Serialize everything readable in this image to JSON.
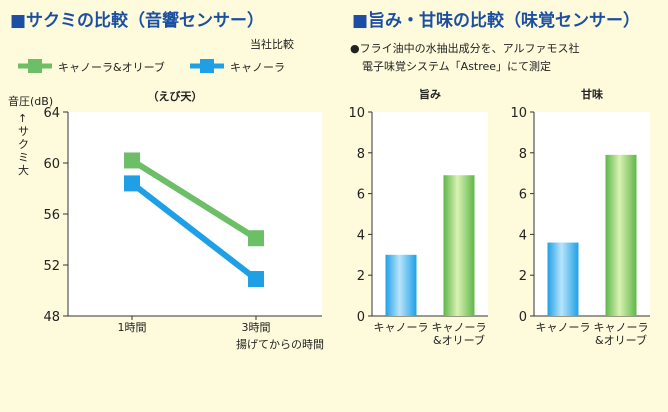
{
  "left_panel": {
    "title": "■サクミの比較（音響センサー）",
    "comparison_note": "当社比較",
    "legend": [
      {
        "label": "キャノーラ&オリーブ",
        "color": "#6dbf67"
      },
      {
        "label": "キャノーラ",
        "color": "#1fa0e6"
      }
    ],
    "y_axis_label": "音圧(dB)",
    "y_axis_note": "↑サクミ大",
    "x_axis_note": "揚げてからの時間"
  },
  "right_panel": {
    "title": "■旨み・甘味の比較（味覚センサー）",
    "note_line1": "●フライ油中の水抽出成分を、アルファモス社",
    "note_line2": "電子味覚システム「Astree」にて測定"
  },
  "chart_data": [
    {
      "type": "line",
      "title": "（えび天）",
      "x": [
        "1時間",
        "3時間"
      ],
      "series": [
        {
          "name": "キャノーラ&オリーブ",
          "values": [
            60.2,
            54.1
          ],
          "color": "#6dbf67"
        },
        {
          "name": "キャノーラ",
          "values": [
            58.4,
            50.9
          ],
          "color": "#1fa0e6"
        }
      ],
      "ylim": [
        48,
        64
      ],
      "yticks": [
        48,
        52,
        56,
        60,
        64
      ],
      "ylabel": "音圧(dB)",
      "xlabel": "揚げてからの時間",
      "grid": false
    },
    {
      "type": "bar",
      "title": "旨み",
      "categories": [
        "キャノーラ",
        "キャノーラ&オリーブ"
      ],
      "category_lines": [
        [
          "キャノーラ"
        ],
        [
          "キャノーラ",
          "&オリーブ"
        ]
      ],
      "values": [
        3.0,
        6.9
      ],
      "colors": [
        "#1fa0e6",
        "#6dbf67"
      ],
      "ylim": [
        0,
        10
      ],
      "yticks": [
        0,
        2,
        4,
        6,
        8,
        10
      ],
      "grid": false
    },
    {
      "type": "bar",
      "title": "甘味",
      "categories": [
        "キャノーラ",
        "キャノーラ&オリーブ"
      ],
      "category_lines": [
        [
          "キャノーラ"
        ],
        [
          "キャノーラ",
          "&オリーブ"
        ]
      ],
      "values": [
        3.6,
        7.9
      ],
      "colors": [
        "#1fa0e6",
        "#6dbf67"
      ],
      "ylim": [
        0,
        10
      ],
      "yticks": [
        0,
        2,
        4,
        6,
        8,
        10
      ],
      "grid": false
    }
  ]
}
